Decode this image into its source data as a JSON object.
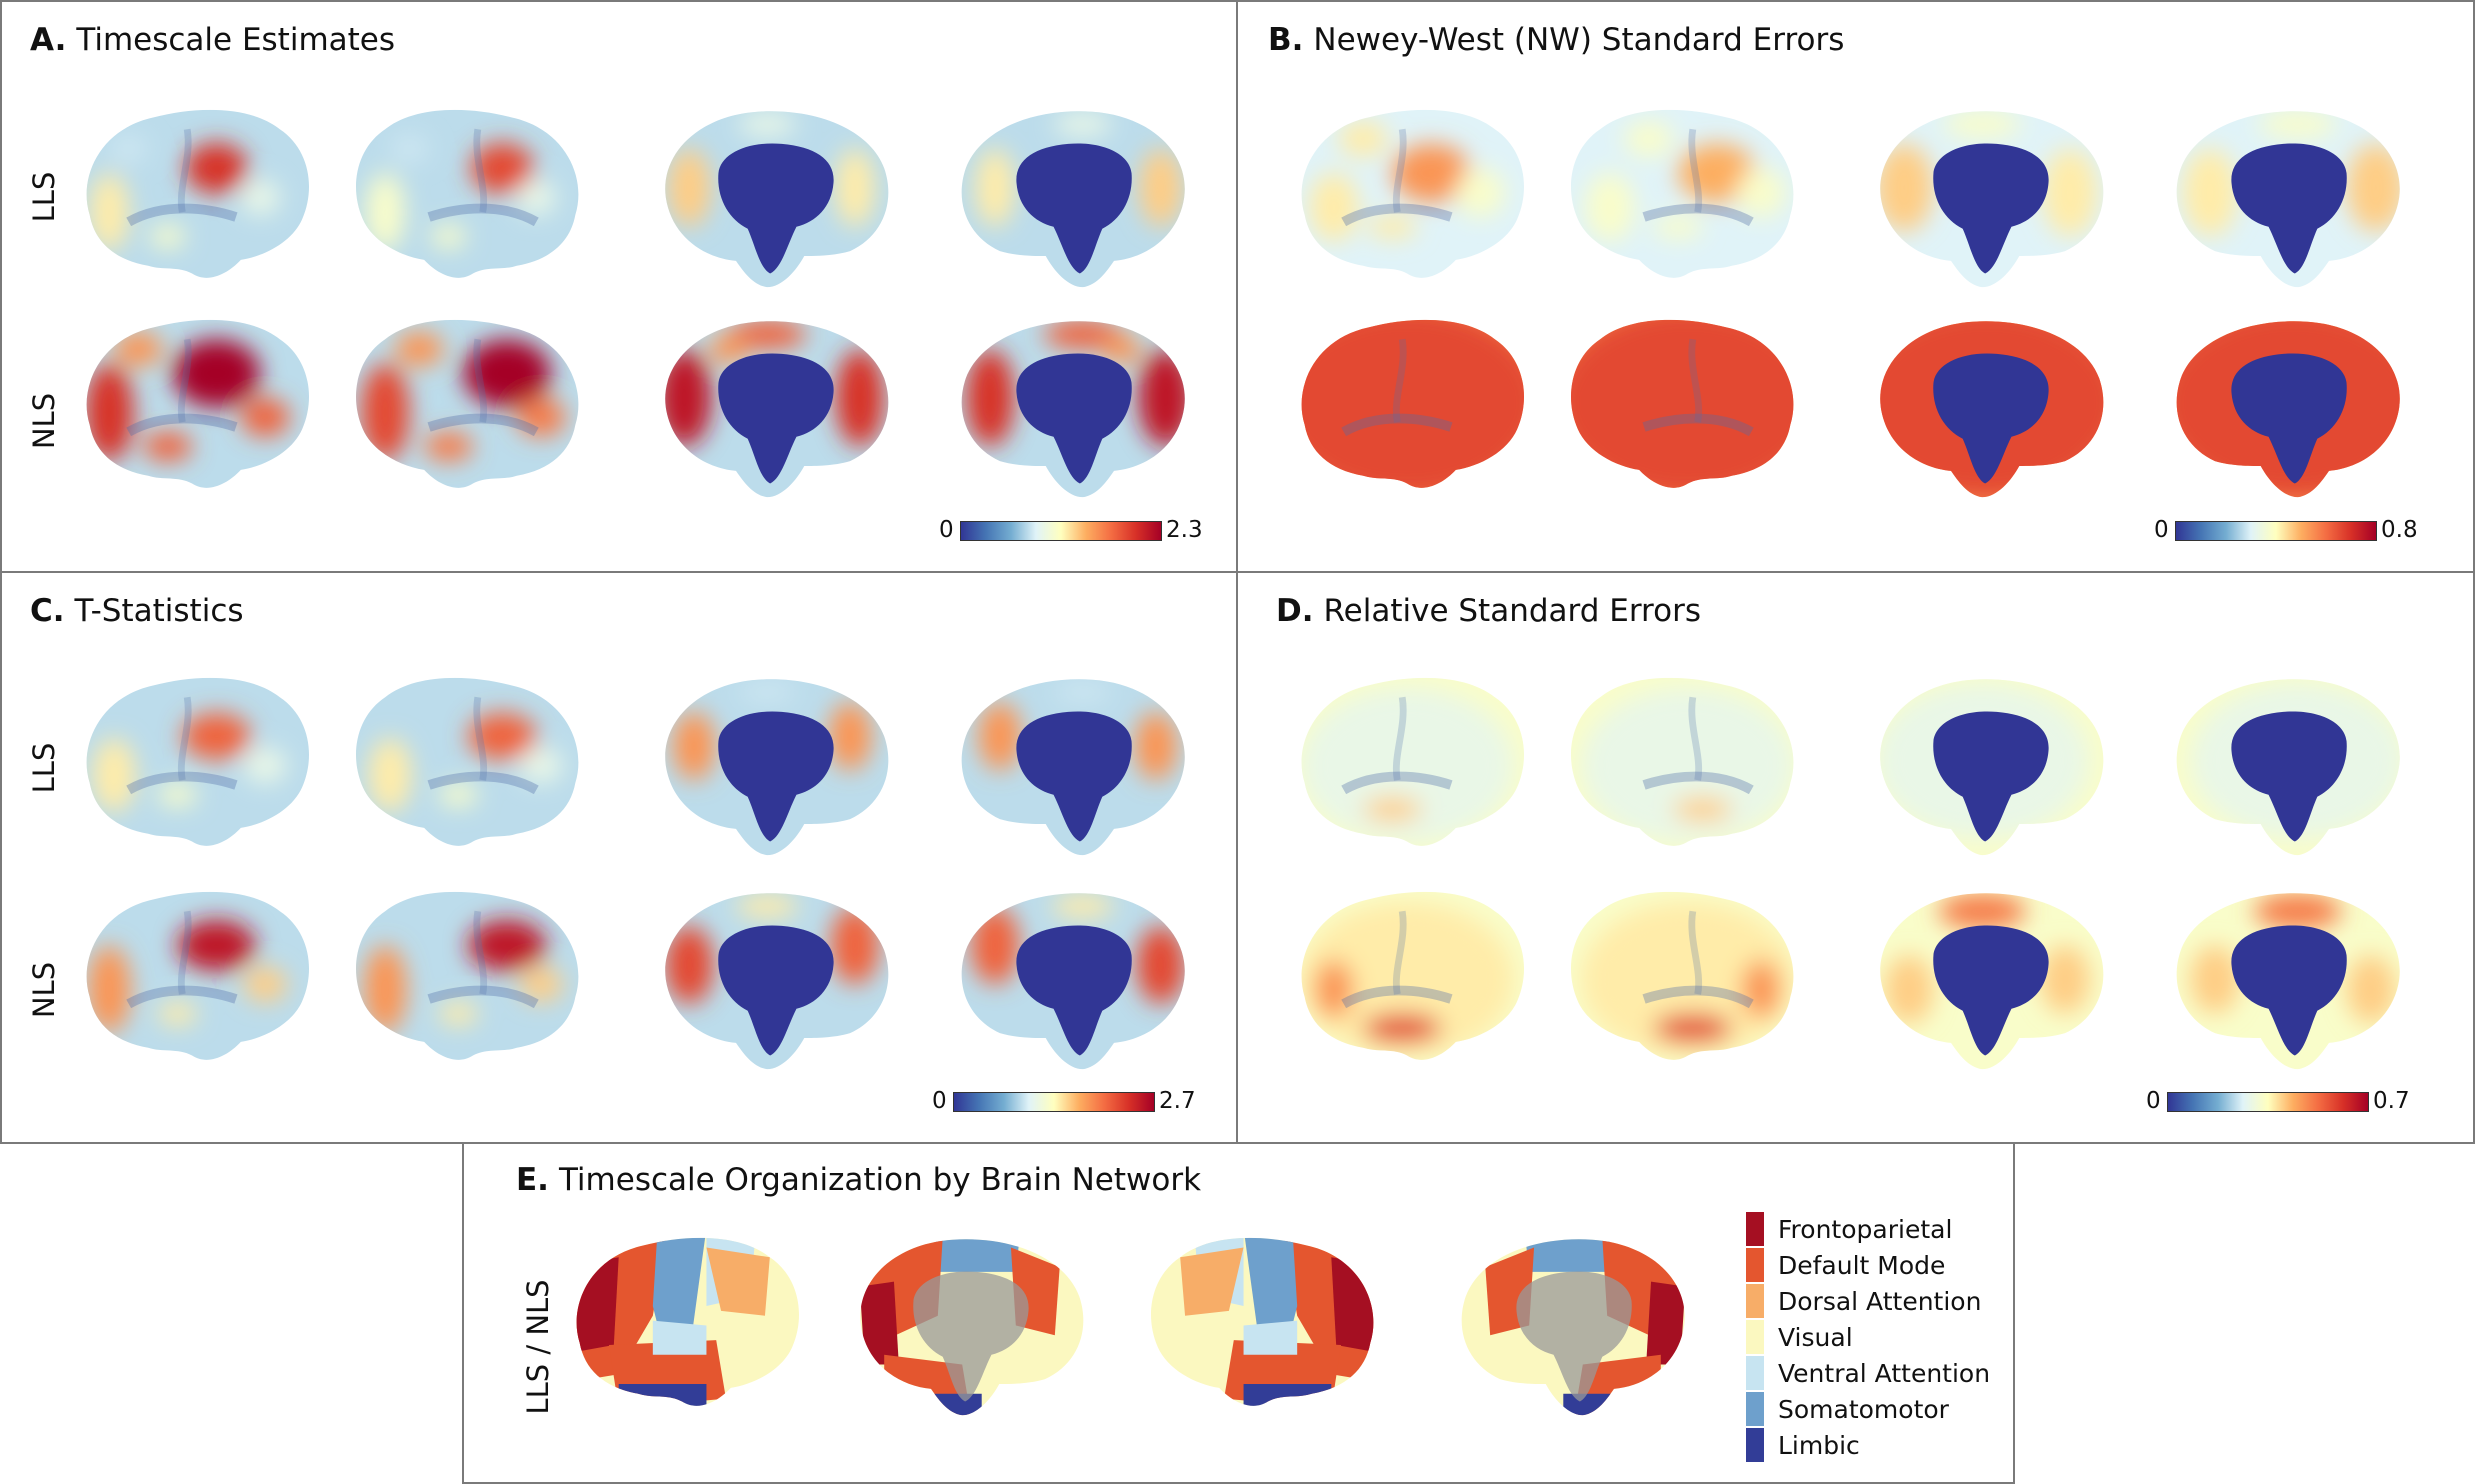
{
  "panels": {
    "a": {
      "letter": "A.",
      "title": "Timescale Estimates",
      "rows": [
        "LLS",
        "NLS"
      ],
      "cbar_min": "0",
      "cbar_max": "2.3"
    },
    "b": {
      "letter": "B.",
      "title": "Newey-West (NW) Standard Errors",
      "rows": [],
      "cbar_min": "0",
      "cbar_max": "0.8"
    },
    "c": {
      "letter": "C.",
      "title": "T-Statistics",
      "rows": [
        "LLS",
        "NLS"
      ],
      "cbar_min": "0",
      "cbar_max": "2.7"
    },
    "d": {
      "letter": "D.",
      "title": "Relative Standard Errors",
      "rows": [],
      "cbar_min": "0",
      "cbar_max": "0.7"
    },
    "e": {
      "letter": "E.",
      "title": "Timescale Organization by Brain Network",
      "rows": [
        "LLS / NLS"
      ]
    }
  },
  "legend": [
    {
      "label": "Frontoparietal",
      "color": "#a50f22"
    },
    {
      "label": "Default Mode",
      "color": "#e4562f"
    },
    {
      "label": "Dorsal Attention",
      "color": "#f7ad68"
    },
    {
      "label": "Visual",
      "color": "#fbf8c0"
    },
    {
      "label": "Ventral Attention",
      "color": "#c7e4f1"
    },
    {
      "label": "Somatomotor",
      "color": "#6ea0cc"
    },
    {
      "label": "Limbic",
      "color": "#323d97"
    }
  ],
  "colormap": {
    "low": "#313695",
    "mid": "#ffffbf",
    "high": "#a50026"
  }
}
